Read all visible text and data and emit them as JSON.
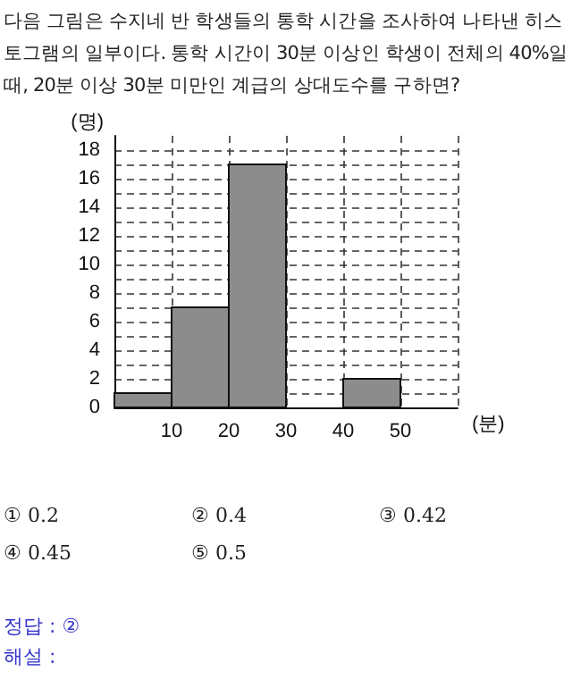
{
  "chart_data": {
    "type": "histogram",
    "title": "다음 그림은 수지네 반 학생들의 통학 시간을 조사하여 나타낸 히스토그램의 일부이다. 통학 시간이 30분 이상인 학생이 전체의 40%일 때, 20분 이상 30분 미만인 계급의 상대도수를 구하면?",
    "xlabel": "(분)",
    "ylabel": "(명)",
    "bins": [
      0,
      10,
      20,
      30,
      40,
      50,
      60
    ],
    "values": [
      1,
      7,
      17,
      null,
      2,
      null
    ],
    "color": "#8c8c8c",
    "xlim": [
      0,
      60
    ],
    "xticks": [
      10,
      20,
      30,
      40,
      50
    ],
    "ylim": [
      0,
      19
    ],
    "yticks": [
      0,
      {
        "value": 1,
        "label": null
      },
      2,
      {
        "value": 3,
        "label": null
      },
      4,
      {
        "value": 5,
        "label": null
      },
      6,
      {
        "value": 7,
        "label": null
      },
      8,
      {
        "value": 9,
        "label": null
      },
      10,
      {
        "value": 11,
        "label": null
      },
      12,
      {
        "value": 13,
        "label": null
      },
      14,
      {
        "value": 15,
        "label": null
      },
      16,
      {
        "value": 17,
        "label": null
      },
      18
    ],
    "grid": true,
    "annotations": [
      "① 0.2",
      "② 0.4",
      "③ 0.42",
      "④ 0.45",
      "⑤ 0.5",
      "정답 : ②",
      "해설 :"
    ]
  }
}
